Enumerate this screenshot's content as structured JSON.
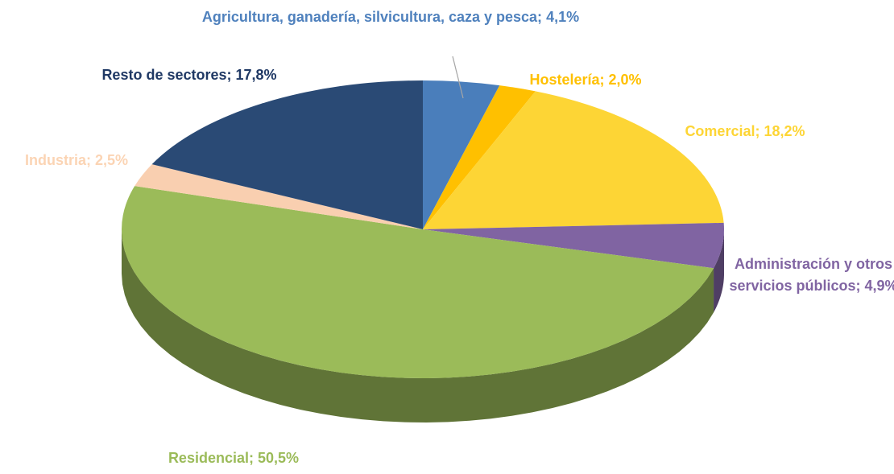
{
  "chart_data": {
    "type": "pie3d",
    "categories": [
      "Agricultura, ganadería, silvicultura, caza y pesca;",
      "Hostelería;",
      "Comercial;",
      "Administración y otros servicios públicos;",
      "Residencial;",
      "Industria;",
      "Resto  de sectores;"
    ],
    "values": [
      4.1,
      2.0,
      18.2,
      4.9,
      50.5,
      2.5,
      17.8
    ],
    "value_labels": [
      "4,1%",
      "2,0%",
      "18,2%",
      "4,9%",
      "50,5%",
      "2,5%",
      "17,8%"
    ],
    "colors": [
      "#4a7ebb",
      "#ffc000",
      "#fdd535",
      "#8064a2",
      "#9bbb59",
      "#f9cfb0",
      "#2a4a75"
    ]
  }
}
